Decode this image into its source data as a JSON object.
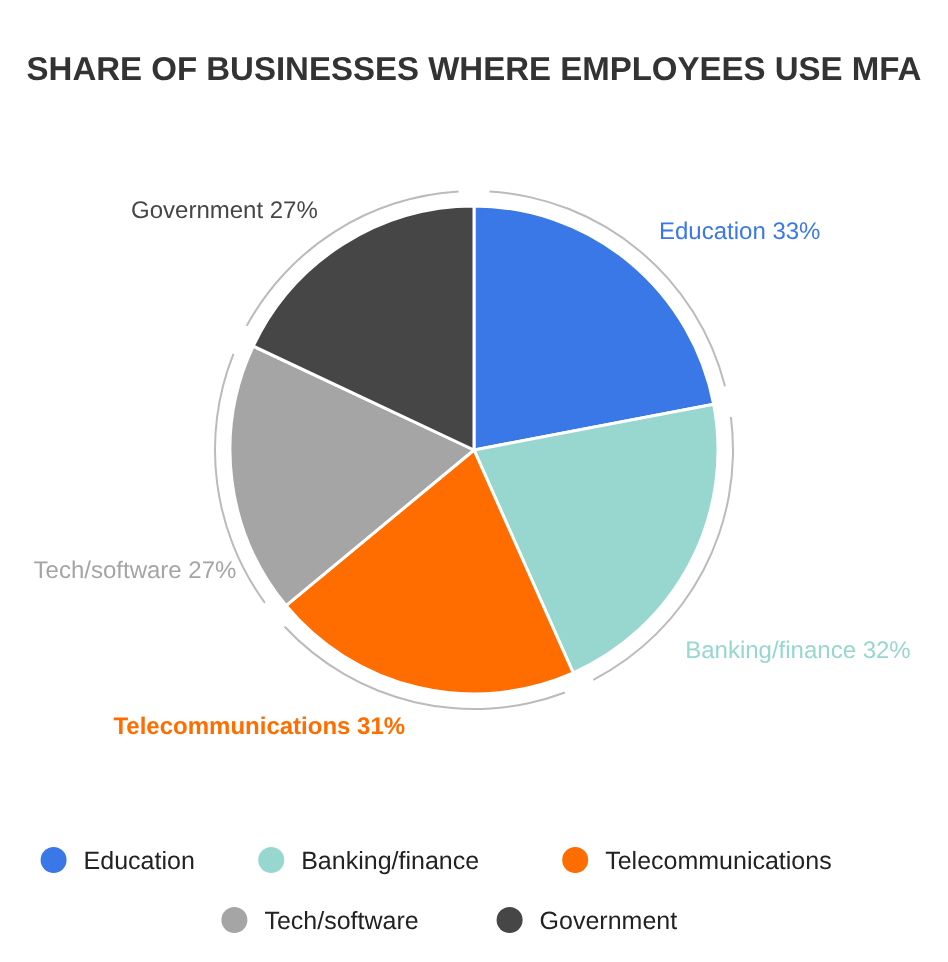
{
  "chart_data": {
    "type": "pie",
    "title": "SHARE OF BUSINESSES WHERE EMPLOYEES USE MFA",
    "categories": [
      "Education",
      "Banking/finance",
      "Telecommunications",
      "Tech/software",
      "Government"
    ],
    "values": [
      33,
      32,
      31,
      27,
      27
    ],
    "value_labels": [
      "33%",
      "32%",
      "31%",
      "27%",
      "27%"
    ],
    "colors": [
      "#3b78e7",
      "#97d7cf",
      "#ff6d00",
      "#a5a5a5",
      "#464646"
    ],
    "legend": "bottom"
  }
}
